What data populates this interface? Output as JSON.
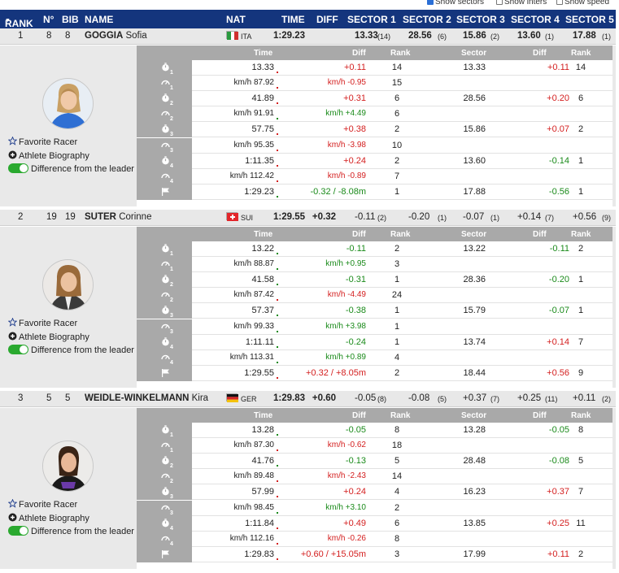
{
  "toggles": [
    {
      "label": "Show sectors",
      "checked": true
    },
    {
      "label": "Show inters",
      "checked": false
    },
    {
      "label": "Show speed",
      "checked": false
    }
  ],
  "header": {
    "rank": "RANK",
    "no": "N°",
    "bib": "BIB",
    "name": "NAME",
    "nat": "NAT",
    "time": "TIME",
    "diff": "DIFF",
    "s1": "SECTOR 1",
    "s2": "SECTOR 2",
    "s3": "SECTOR 3",
    "s4": "SECTOR 4",
    "s5": "SECTOR 5"
  },
  "detail_header": {
    "time": "Time",
    "diff": "Diff",
    "rank": "Rank",
    "sector": "Sector",
    "sdiff": "Diff",
    "srank": "Rank"
  },
  "links": {
    "favorite": "Favorite Racer",
    "bio": "Athlete Biography",
    "diff_leader": "Difference from the leader"
  },
  "racers": [
    {
      "rank": "1",
      "no": "8",
      "bib": "8",
      "last": "GOGGIA",
      "first": "Sofia",
      "nat": "ITA",
      "time": "1:29.23",
      "diff": "",
      "sectors": [
        {
          "v": "13.33",
          "r": "(14)"
        },
        {
          "v": "28.56",
          "r": "(6)"
        },
        {
          "v": "15.86",
          "r": "(2)"
        },
        {
          "v": "13.60",
          "r": "(1)"
        },
        {
          "v": "17.88",
          "r": "(1)"
        }
      ],
      "rows": [
        {
          "icon": "1",
          "kind": "time",
          "time": "13.33",
          "diff": "+0.11",
          "dc": "r",
          "rank": "14",
          "sector": "13.33",
          "sdiff": "+0.11",
          "sdc": "r",
          "srank": "14"
        },
        {
          "icon": "1",
          "kind": "speed",
          "time": "km/h 87.92",
          "diff": "km/h -0.95",
          "dc": "r",
          "rank": "15",
          "sector": "",
          "sdiff": "",
          "sdc": "",
          "srank": ""
        },
        {
          "icon": "2",
          "kind": "time",
          "time": "41.89",
          "diff": "+0.31",
          "dc": "r",
          "rank": "6",
          "sector": "28.56",
          "sdiff": "+0.20",
          "sdc": "r",
          "srank": "6"
        },
        {
          "icon": "2",
          "kind": "speed",
          "time": "km/h 91.91",
          "diff": "km/h +4.49",
          "dc": "g",
          "rank": "6",
          "sector": "",
          "sdiff": "",
          "sdc": "",
          "srank": ""
        },
        {
          "icon": "3",
          "kind": "time",
          "time": "57.75",
          "diff": "+0.38",
          "dc": "r",
          "rank": "2",
          "sector": "15.86",
          "sdiff": "+0.07",
          "sdc": "r",
          "srank": "2"
        },
        {
          "icon": "3",
          "kind": "speed",
          "time": "km/h 95.35",
          "diff": "km/h -3.98",
          "dc": "r",
          "rank": "10",
          "sector": "",
          "sdiff": "",
          "sdc": "",
          "srank": ""
        },
        {
          "icon": "4",
          "kind": "time",
          "time": "1:11.35",
          "diff": "+0.24",
          "dc": "r",
          "rank": "2",
          "sector": "13.60",
          "sdiff": "-0.14",
          "sdc": "g",
          "srank": "1"
        },
        {
          "icon": "4",
          "kind": "speed",
          "time": "km/h 112.42",
          "diff": "km/h -0.89",
          "dc": "r",
          "rank": "7",
          "sector": "",
          "sdiff": "",
          "sdc": "",
          "srank": ""
        },
        {
          "icon": "F",
          "kind": "finish",
          "time": "1:29.23",
          "diff": "-0.32 / -8.08m",
          "dc": "g",
          "rank": "1",
          "sector": "17.88",
          "sdiff": "-0.56",
          "sdc": "g",
          "srank": "1"
        }
      ]
    },
    {
      "rank": "2",
      "no": "19",
      "bib": "19",
      "last": "SUTER",
      "first": "Corinne",
      "nat": "SUI",
      "time": "1:29.55",
      "diff": "+0.32",
      "sectors": [
        {
          "v": "-0.11",
          "r": "(2)"
        },
        {
          "v": "-0.20",
          "r": "(1)"
        },
        {
          "v": "-0.07",
          "r": "(1)"
        },
        {
          "v": "+0.14",
          "r": "(7)"
        },
        {
          "v": "+0.56",
          "r": "(9)"
        }
      ],
      "rows": [
        {
          "icon": "1",
          "kind": "time",
          "time": "13.22",
          "diff": "-0.11",
          "dc": "g",
          "rank": "2",
          "sector": "13.22",
          "sdiff": "-0.11",
          "sdc": "g",
          "srank": "2"
        },
        {
          "icon": "1",
          "kind": "speed",
          "time": "km/h 88.87",
          "diff": "km/h +0.95",
          "dc": "g",
          "rank": "3",
          "sector": "",
          "sdiff": "",
          "sdc": "",
          "srank": ""
        },
        {
          "icon": "2",
          "kind": "time",
          "time": "41.58",
          "diff": "-0.31",
          "dc": "g",
          "rank": "1",
          "sector": "28.36",
          "sdiff": "-0.20",
          "sdc": "g",
          "srank": "1"
        },
        {
          "icon": "2",
          "kind": "speed",
          "time": "km/h 87.42",
          "diff": "km/h -4.49",
          "dc": "r",
          "rank": "24",
          "sector": "",
          "sdiff": "",
          "sdc": "",
          "srank": ""
        },
        {
          "icon": "3",
          "kind": "time",
          "time": "57.37",
          "diff": "-0.38",
          "dc": "g",
          "rank": "1",
          "sector": "15.79",
          "sdiff": "-0.07",
          "sdc": "g",
          "srank": "1"
        },
        {
          "icon": "3",
          "kind": "speed",
          "time": "km/h 99.33",
          "diff": "km/h +3.98",
          "dc": "g",
          "rank": "1",
          "sector": "",
          "sdiff": "",
          "sdc": "",
          "srank": ""
        },
        {
          "icon": "4",
          "kind": "time",
          "time": "1:11.11",
          "diff": "-0.24",
          "dc": "g",
          "rank": "1",
          "sector": "13.74",
          "sdiff": "+0.14",
          "sdc": "r",
          "srank": "7"
        },
        {
          "icon": "4",
          "kind": "speed",
          "time": "km/h 113.31",
          "diff": "km/h +0.89",
          "dc": "g",
          "rank": "4",
          "sector": "",
          "sdiff": "",
          "sdc": "",
          "srank": ""
        },
        {
          "icon": "F",
          "kind": "finish",
          "time": "1:29.55",
          "diff": "+0.32 / +8.05m",
          "dc": "r",
          "rank": "2",
          "sector": "18.44",
          "sdiff": "+0.56",
          "sdc": "r",
          "srank": "9"
        }
      ]
    },
    {
      "rank": "3",
      "no": "5",
      "bib": "5",
      "last": "WEIDLE-WINKELMANN",
      "first": "Kira",
      "nat": "GER",
      "time": "1:29.83",
      "diff": "+0.60",
      "sectors": [
        {
          "v": "-0.05",
          "r": "(8)"
        },
        {
          "v": "-0.08",
          "r": "(5)"
        },
        {
          "v": "+0.37",
          "r": "(7)"
        },
        {
          "v": "+0.25",
          "r": "(11)"
        },
        {
          "v": "+0.11",
          "r": "(2)"
        }
      ],
      "rows": [
        {
          "icon": "1",
          "kind": "time",
          "time": "13.28",
          "diff": "-0.05",
          "dc": "g",
          "rank": "8",
          "sector": "13.28",
          "sdiff": "-0.05",
          "sdc": "g",
          "srank": "8"
        },
        {
          "icon": "1",
          "kind": "speed",
          "time": "km/h 87.30",
          "diff": "km/h -0.62",
          "dc": "r",
          "rank": "18",
          "sector": "",
          "sdiff": "",
          "sdc": "",
          "srank": ""
        },
        {
          "icon": "2",
          "kind": "time",
          "time": "41.76",
          "diff": "-0.13",
          "dc": "g",
          "rank": "5",
          "sector": "28.48",
          "sdiff": "-0.08",
          "sdc": "g",
          "srank": "5"
        },
        {
          "icon": "2",
          "kind": "speed",
          "time": "km/h 89.48",
          "diff": "km/h -2.43",
          "dc": "r",
          "rank": "14",
          "sector": "",
          "sdiff": "",
          "sdc": "",
          "srank": ""
        },
        {
          "icon": "3",
          "kind": "time",
          "time": "57.99",
          "diff": "+0.24",
          "dc": "r",
          "rank": "4",
          "sector": "16.23",
          "sdiff": "+0.37",
          "sdc": "r",
          "srank": "7"
        },
        {
          "icon": "3",
          "kind": "speed",
          "time": "km/h 98.45",
          "diff": "km/h +3.10",
          "dc": "g",
          "rank": "2",
          "sector": "",
          "sdiff": "",
          "sdc": "",
          "srank": ""
        },
        {
          "icon": "4",
          "kind": "time",
          "time": "1:11.84",
          "diff": "+0.49",
          "dc": "r",
          "rank": "6",
          "sector": "13.85",
          "sdiff": "+0.25",
          "sdc": "r",
          "srank": "11"
        },
        {
          "icon": "4",
          "kind": "speed",
          "time": "km/h 112.16",
          "diff": "km/h -0.26",
          "dc": "r",
          "rank": "8",
          "sector": "",
          "sdiff": "",
          "sdc": "",
          "srank": ""
        },
        {
          "icon": "F",
          "kind": "finish",
          "time": "1:29.83",
          "diff": "+0.60 / +15.05m",
          "dc": "r",
          "rank": "3",
          "sector": "17.99",
          "sdiff": "+0.11",
          "sdc": "r",
          "srank": "2"
        }
      ]
    }
  ],
  "colors": {
    "header": "#14357d",
    "green": "#1a8a1a",
    "red": "#d42020",
    "toggle_on": "#2aa92f"
  }
}
